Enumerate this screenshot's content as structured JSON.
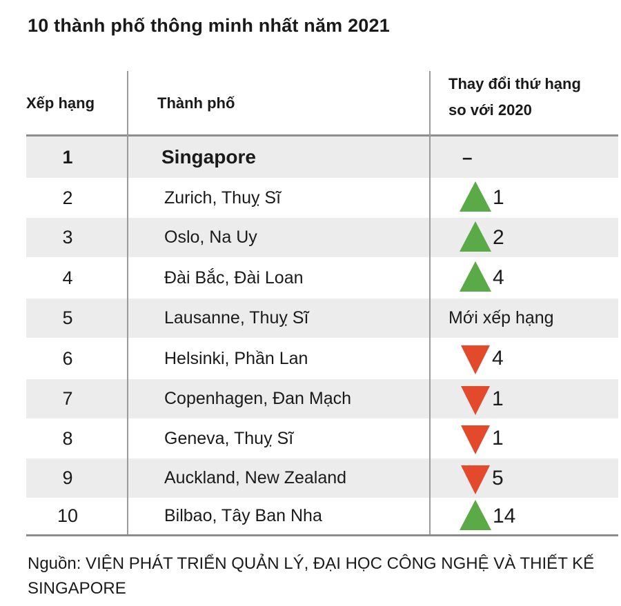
{
  "title": "10 thành phố thông minh nhất năm 2021",
  "table": {
    "headers": {
      "rank": "Xếp hạng",
      "city": "Thành phố",
      "change_line1": "Thay đổi thứ hạng",
      "change_line2": "so với 2020"
    },
    "rows": [
      {
        "rank": "1",
        "city": "Singapore",
        "change_text": "–",
        "direction": "none"
      },
      {
        "rank": "2",
        "city": "Zurich, Thuỵ Sĩ",
        "change_text": "1",
        "direction": "up"
      },
      {
        "rank": "3",
        "city": "Oslo, Na Uy",
        "change_text": "2",
        "direction": "up"
      },
      {
        "rank": "4",
        "city": "Đài Bắc, Đài Loan",
        "change_text": "4",
        "direction": "up"
      },
      {
        "rank": "5",
        "city": "Lausanne, Thuỵ Sĩ",
        "change_text": "Mới xếp hạng",
        "direction": "new"
      },
      {
        "rank": "6",
        "city": "Helsinki, Phần Lan",
        "change_text": "4",
        "direction": "down"
      },
      {
        "rank": "7",
        "city": "Copenhagen, Đan Mạch",
        "change_text": "1",
        "direction": "down"
      },
      {
        "rank": "8",
        "city": "Geneva, Thuỵ Sĩ",
        "change_text": "1",
        "direction": "down"
      },
      {
        "rank": "9",
        "city": "Auckland, New Zealand",
        "change_text": "5",
        "direction": "down"
      },
      {
        "rank": "10",
        "city": "Bilbao, Tây Ban Nha",
        "change_text": "14",
        "direction": "up"
      }
    ]
  },
  "colors": {
    "up": "#5aaa48",
    "down": "#e34a2c",
    "shade": "#ececec"
  },
  "source": "Nguồn: VIỆN PHÁT TRIỂN QUẢN LÝ, ĐẠI HỌC CÔNG NGHỆ VÀ THIẾT KẾ SINGAPORE"
}
